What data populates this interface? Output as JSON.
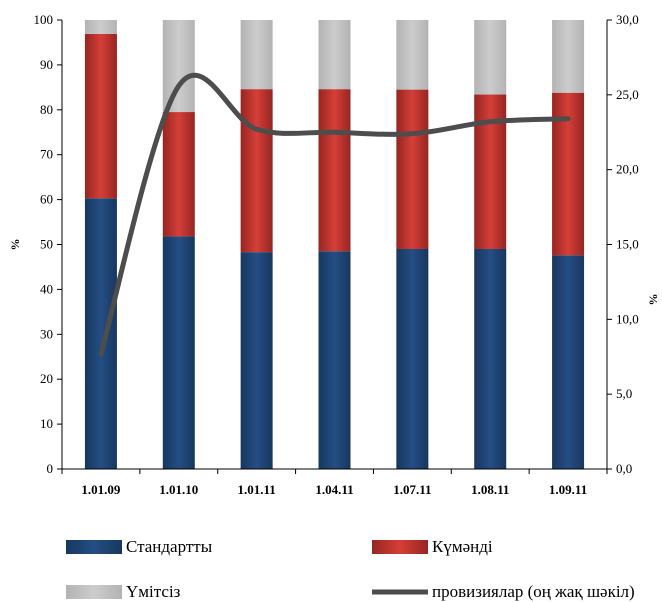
{
  "chart_data": {
    "type": "bar",
    "stacked": true,
    "categories": [
      "1.01.09",
      "1.01.10",
      "1.01.11",
      "1.04.11",
      "1.07.11",
      "1.08.11",
      "1.09.11"
    ],
    "series": [
      {
        "name": "Стандартты",
        "values": [
          60.3,
          51.8,
          48.3,
          48.5,
          49.0,
          49.0,
          47.6
        ],
        "color": "#1f497d"
      },
      {
        "name": "Күмәнді",
        "values": [
          36.6,
          27.7,
          36.3,
          36.1,
          35.5,
          34.4,
          36.2
        ],
        "color": "#c0312b"
      },
      {
        "name": "Үмітсіз",
        "values": [
          3.1,
          20.5,
          15.4,
          15.4,
          15.5,
          16.6,
          16.2
        ],
        "color": "#bfbfbf"
      }
    ],
    "line": {
      "name": "провизиялар (оң жақ шәкіл)",
      "axis": "right",
      "values": [
        7.7,
        25.6,
        22.7,
        22.5,
        22.4,
        23.2,
        23.4
      ],
      "color": "#4d4d4d"
    },
    "ylabel": "%",
    "y2label": "%",
    "ylim": [
      0,
      100
    ],
    "y2lim": [
      0,
      30
    ],
    "yticks": [
      "0",
      "10",
      "20",
      "30",
      "40",
      "50",
      "60",
      "70",
      "80",
      "90",
      "100"
    ],
    "y2ticks": [
      "0,0",
      "5,0",
      "10,0",
      "15,0",
      "20,0",
      "25,0",
      "30,0"
    ],
    "grid": false,
    "legend_position": "bottom"
  }
}
